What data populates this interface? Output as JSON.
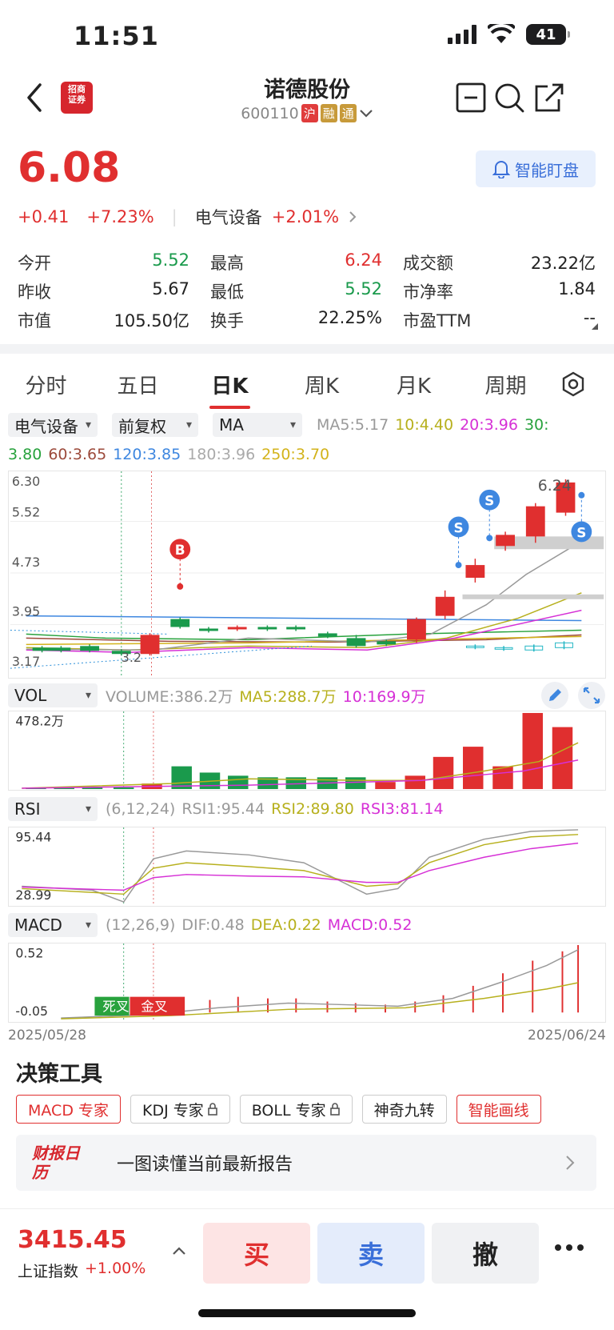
{
  "status_bar": {
    "time": "11:51",
    "battery": "41"
  },
  "header": {
    "broker_logo_text": "招商证券",
    "stock_name": "诺德股份",
    "stock_code": "600110",
    "tags": [
      "沪",
      "融",
      "通"
    ]
  },
  "quote": {
    "price": "6.08",
    "change": "+0.41",
    "change_pct": "+7.23%",
    "sector": "电气设备",
    "sector_change": "+2.01%",
    "watch_button": "智能盯盘",
    "stats": [
      [
        {
          "label": "今开",
          "value": "5.52",
          "color": "green"
        },
        {
          "label": "最高",
          "value": "6.24",
          "color": "red"
        },
        {
          "label": "成交额",
          "value": "23.22亿",
          "color": "black"
        }
      ],
      [
        {
          "label": "昨收",
          "value": "5.67",
          "color": "black"
        },
        {
          "label": "最低",
          "value": "5.52",
          "color": "green"
        },
        {
          "label": "市净率",
          "value": "1.84",
          "color": "black"
        }
      ],
      [
        {
          "label": "市值",
          "value": "105.50亿",
          "color": "black"
        },
        {
          "label": "换手",
          "value": "22.25%",
          "color": "black"
        },
        {
          "label": "市盈TTM",
          "value": "--",
          "color": "black"
        }
      ]
    ]
  },
  "period_tabs": [
    "分时",
    "五日",
    "日K",
    "周K",
    "月K",
    "周期"
  ],
  "kline": {
    "dropdowns": [
      "电气设备",
      "前复权",
      "MA"
    ],
    "ma_legend": [
      {
        "text": "MA5:5.17",
        "cls": "c-gray"
      },
      {
        "text": "10:4.40",
        "cls": "c-olive"
      },
      {
        "text": "20:3.96",
        "cls": "c-mag"
      },
      {
        "text": "30:",
        "cls": "c-green"
      }
    ],
    "ma_legend2": [
      {
        "text": "3.80",
        "cls": "c-green"
      },
      {
        "text": "60:3.65",
        "cls": "c-brown"
      },
      {
        "text": "120:3.85",
        "cls": "c-blue"
      },
      {
        "text": "180:3.96",
        "cls": "c-lgray"
      },
      {
        "text": "250:3.70",
        "cls": "c-yel"
      }
    ],
    "y_labels": [
      "6.30",
      "5.52",
      "4.73",
      "3.95",
      "3.17"
    ],
    "low_label": "3.2",
    "high_label": "6.24",
    "markers": {
      "buy": "B",
      "sell": "S"
    }
  },
  "volume": {
    "dropdown": "VOL",
    "legend": [
      {
        "text": "VOLUME:386.2万",
        "cls": "c-gray"
      },
      {
        "text": "MA5:288.7万",
        "cls": "c-olive"
      },
      {
        "text": "10:169.9万",
        "cls": "c-mag"
      }
    ],
    "y_label": "478.2万"
  },
  "rsi": {
    "dropdown": "RSI",
    "legend": [
      {
        "text": "(6,12,24)",
        "cls": "c-gray"
      },
      {
        "text": "RSI1:95.44",
        "cls": "c-gray"
      },
      {
        "text": "RSI2:89.80",
        "cls": "c-olive"
      },
      {
        "text": "RSI3:81.14",
        "cls": "c-mag"
      }
    ],
    "y_top": "95.44",
    "y_bottom": "28.99"
  },
  "macd": {
    "dropdown": "MACD",
    "legend": [
      {
        "text": "(12,26,9)",
        "cls": "c-gray"
      },
      {
        "text": "DIF:0.48",
        "cls": "c-gray"
      },
      {
        "text": "DEA:0.22",
        "cls": "c-olive"
      },
      {
        "text": "MACD:0.52",
        "cls": "c-mag"
      }
    ],
    "y_top": "0.52",
    "y_bottom": "-0.05",
    "dead_cross": "死叉",
    "golden_cross": "金叉",
    "date_start": "2025/05/28",
    "date_end": "2025/06/24"
  },
  "tools": {
    "title": "决策工具",
    "buttons": [
      "MACD 专家",
      "KDJ 专家",
      "BOLL 专家",
      "神奇九转",
      "智能画线"
    ],
    "report_logo": "财报日历",
    "report_text": "一图读懂当前最新报告"
  },
  "bottom": {
    "index_price": "3415.45",
    "index_name": "上证指数",
    "index_change": "+1.00%",
    "buy": "买",
    "sell": "卖",
    "cancel": "撤"
  }
}
